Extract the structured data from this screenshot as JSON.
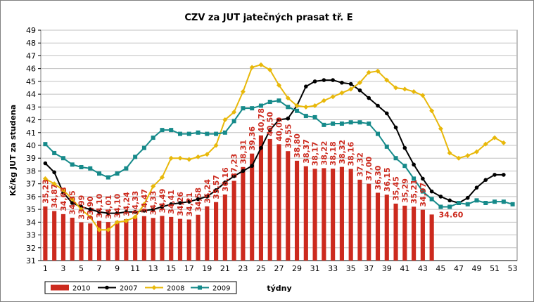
{
  "chart_data": {
    "type": "bar",
    "title": "CZV za JUT jatečných prasat tř. E",
    "xlabel": "týdny",
    "ylabel": "Kč/kg JUT za studena",
    "ylim": [
      31,
      49
    ],
    "xlim": [
      1,
      53
    ],
    "yticks": [
      "31",
      "32",
      "33",
      "34",
      "35",
      "36",
      "37",
      "38",
      "39",
      "40",
      "41",
      "42",
      "43",
      "44",
      "45",
      "46",
      "47",
      "48",
      "49"
    ],
    "xticks": [
      "1",
      "3",
      "5",
      "7",
      "9",
      "11",
      "13",
      "15",
      "17",
      "19",
      "21",
      "23",
      "25",
      "27",
      "29",
      "31",
      "33",
      "35",
      "37",
      "39",
      "41",
      "43",
      "45",
      "47",
      "49",
      "51",
      "53"
    ],
    "grid": true,
    "legend_position": "bottom-left",
    "colors": {
      "2010": "#cc2a1e",
      "2007": "#000000",
      "2008": "#e8b80a",
      "2009": "#168a8a"
    },
    "series": [
      {
        "name": "2010",
        "kind": "bar",
        "x": [
          1,
          2,
          3,
          4,
          5,
          6,
          7,
          8,
          9,
          10,
          11,
          12,
          13,
          14,
          15,
          16,
          17,
          18,
          19,
          20,
          21,
          22,
          23,
          24,
          25,
          26,
          27,
          28,
          29,
          30,
          31,
          32,
          33,
          34,
          35,
          36,
          37,
          38,
          39,
          40,
          41,
          42,
          43,
          44
        ],
        "values": [
          35.23,
          34.87,
          34.63,
          34.35,
          33.99,
          33.9,
          34.1,
          34.01,
          34.1,
          34.24,
          34.33,
          34.47,
          34.33,
          34.49,
          34.41,
          34.26,
          34.21,
          34.58,
          35.24,
          35.57,
          36.16,
          37.23,
          38.31,
          39.36,
          40.78,
          40.5,
          40.09,
          39.55,
          38.8,
          38.37,
          38.17,
          38.22,
          38.18,
          38.32,
          38.16,
          37.32,
          37.0,
          36.3,
          36.15,
          35.45,
          35.29,
          35.21,
          34.97,
          34.6
        ],
        "labels": [
          "35,23",
          "34,87",
          "34,63",
          "34,35",
          "33,99",
          "33,90",
          "34,10",
          "34,01",
          "34,10",
          "34,24",
          "34,33",
          "34,47",
          "34,33",
          "34,49",
          "34,41",
          "34,26",
          "34,21",
          "34,58",
          "35,24",
          "35,57",
          "36,16",
          "37,23",
          "38,31",
          "39,36",
          "40,78",
          "40,50",
          "40,09",
          "39,55",
          "38,80",
          "38,37",
          "38,17",
          "38,22",
          "38,18",
          "38,32",
          "38,16",
          "37,32",
          "37,00",
          "36,30",
          "36,15",
          "35,45",
          "35,29",
          "35,21",
          "34,97",
          "34.60"
        ]
      },
      {
        "name": "2007",
        "kind": "line",
        "x": [
          1,
          2,
          3,
          4,
          5,
          6,
          7,
          8,
          9,
          10,
          11,
          12,
          13,
          14,
          15,
          16,
          17,
          18,
          19,
          20,
          21,
          22,
          23,
          24,
          25,
          26,
          27,
          28,
          29,
          30,
          31,
          32,
          33,
          34,
          35,
          36,
          37,
          38,
          39,
          40,
          41,
          42,
          43,
          44,
          45,
          46,
          47,
          48,
          49,
          50,
          51,
          52
        ],
        "values": [
          38.6,
          37.9,
          36.3,
          35.5,
          35.2,
          35.0,
          34.8,
          34.7,
          34.7,
          34.8,
          34.8,
          34.9,
          35.0,
          35.2,
          35.4,
          35.5,
          35.6,
          35.8,
          36.0,
          36.5,
          37.1,
          37.6,
          38.0,
          38.4,
          39.8,
          41.2,
          42.0,
          42.1,
          43.1,
          44.6,
          45.0,
          45.1,
          45.1,
          44.9,
          44.8,
          44.3,
          43.7,
          43.1,
          42.5,
          41.4,
          39.8,
          38.5,
          37.4,
          36.4,
          36.0,
          35.7,
          35.5,
          35.9,
          36.7,
          37.3,
          37.7,
          37.7
        ]
      },
      {
        "name": "2008",
        "kind": "line",
        "x": [
          1,
          2,
          3,
          4,
          5,
          6,
          7,
          8,
          9,
          10,
          11,
          12,
          13,
          14,
          15,
          16,
          17,
          18,
          19,
          20,
          21,
          22,
          23,
          24,
          25,
          26,
          27,
          28,
          29,
          30,
          31,
          32,
          33,
          34,
          35,
          36,
          37,
          38,
          39,
          40,
          41,
          42,
          43,
          44,
          45,
          46,
          47,
          48,
          49,
          50,
          51,
          52
        ],
        "values": [
          37.4,
          37.0,
          36.5,
          35.8,
          35.0,
          34.4,
          33.4,
          33.4,
          34.0,
          34.1,
          34.4,
          35.4,
          36.8,
          37.5,
          39.0,
          39.0,
          38.9,
          39.1,
          39.3,
          40.0,
          42.0,
          42.6,
          44.2,
          46.1,
          46.3,
          45.9,
          44.7,
          43.7,
          43.1,
          43.0,
          43.1,
          43.5,
          43.8,
          44.1,
          44.4,
          44.9,
          45.7,
          45.8,
          45.1,
          44.5,
          44.4,
          44.2,
          43.9,
          42.7,
          41.3,
          39.4,
          39.0,
          39.2,
          39.5,
          40.1,
          40.6,
          40.2
        ]
      },
      {
        "name": "2009",
        "kind": "line",
        "x": [
          1,
          2,
          3,
          4,
          5,
          6,
          7,
          8,
          9,
          10,
          11,
          12,
          13,
          14,
          15,
          16,
          17,
          18,
          19,
          20,
          21,
          22,
          23,
          24,
          25,
          26,
          27,
          28,
          29,
          30,
          31,
          32,
          33,
          34,
          35,
          36,
          37,
          38,
          39,
          40,
          41,
          42,
          43,
          44,
          45,
          46,
          47,
          48,
          49,
          50,
          51,
          52,
          53
        ],
        "values": [
          40.1,
          39.4,
          39.0,
          38.5,
          38.3,
          38.2,
          37.8,
          37.5,
          37.8,
          38.2,
          39.1,
          39.8,
          40.6,
          41.2,
          41.2,
          40.9,
          40.9,
          41.0,
          40.9,
          40.9,
          41.0,
          41.9,
          42.9,
          42.9,
          43.1,
          43.4,
          43.5,
          43.0,
          42.7,
          42.3,
          42.2,
          41.6,
          41.7,
          41.7,
          41.8,
          41.8,
          41.7,
          40.9,
          39.9,
          39.0,
          38.4,
          37.4,
          36.4,
          35.8,
          35.2,
          35.2,
          35.5,
          35.4,
          35.7,
          35.5,
          35.6,
          35.6,
          35.4
        ]
      }
    ]
  }
}
